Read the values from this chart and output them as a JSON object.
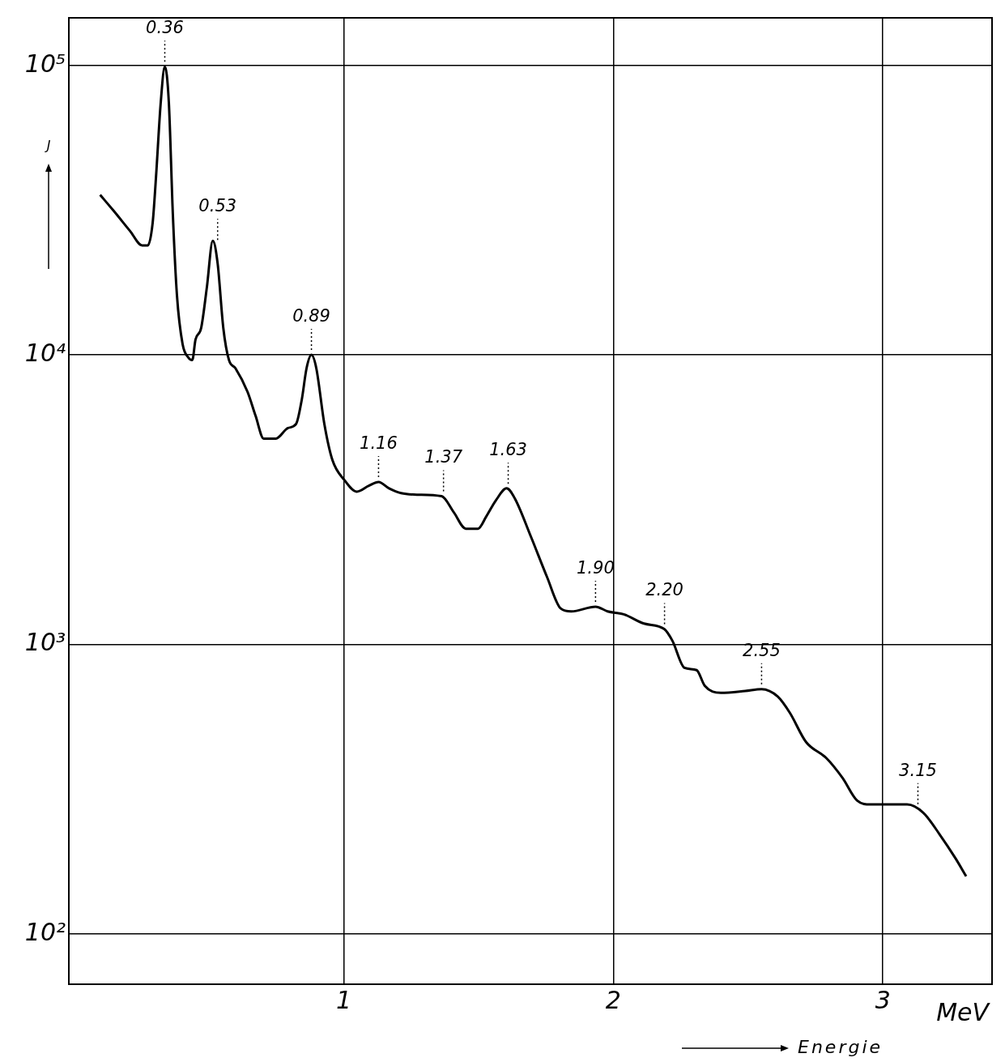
{
  "chart_data": {
    "type": "line",
    "xlabel": "Energie",
    "ylabel": "J",
    "log": "y",
    "grid": true,
    "legend": false,
    "marker": "none",
    "line_style": "solid",
    "xlim": [
      -0.02,
      3.405
    ],
    "xticks": [
      1,
      2,
      3
    ],
    "ylim": [
      67,
      146000
    ],
    "yticks": [
      {
        "value": 100,
        "label": "10²"
      },
      {
        "value": 1000,
        "label": "10³"
      },
      {
        "value": 10000,
        "label": "10⁴"
      },
      {
        "value": 100000,
        "label": "10⁵"
      }
    ],
    "series": [
      {
        "color": "#000000",
        "x": [
          0.096,
          0.147,
          0.207,
          0.252,
          0.273,
          0.291,
          0.303,
          0.321,
          0.336,
          0.351,
          0.366,
          0.381,
          0.402,
          0.423,
          0.438,
          0.45,
          0.471,
          0.492,
          0.514,
          0.532,
          0.553,
          0.574,
          0.598,
          0.643,
          0.673,
          0.703,
          0.748,
          0.793,
          0.823,
          0.844,
          0.862,
          0.88,
          0.898,
          0.928,
          0.958,
          1.003,
          1.048,
          1.093,
          1.129,
          1.168,
          1.213,
          1.273,
          1.363,
          1.408,
          1.453,
          1.498,
          1.529,
          1.565,
          1.604,
          1.634,
          1.694,
          1.754,
          1.805,
          1.844,
          1.934,
          1.979,
          2.039,
          2.114,
          2.189,
          2.219,
          2.264,
          2.309,
          2.339,
          2.399,
          2.489,
          2.55,
          2.61,
          2.655,
          2.715,
          2.79,
          2.85,
          2.904,
          2.955,
          3.03,
          3.09,
          3.15,
          3.21,
          3.27,
          3.309
        ],
        "values": [
          35700,
          31400,
          26800,
          23900,
          23900,
          28600,
          40600,
          74500,
          99000,
          74500,
          30400,
          16100,
          10900,
          9800,
          9600,
          11300,
          12400,
          17100,
          24800,
          20700,
          12400,
          9600,
          9000,
          7450,
          6150,
          5140,
          5140,
          5590,
          5770,
          6990,
          9000,
          10000,
          9000,
          5770,
          4330,
          3690,
          3370,
          3530,
          3640,
          3460,
          3330,
          3290,
          3250,
          2860,
          2510,
          2510,
          2770,
          3150,
          3460,
          3200,
          2360,
          1710,
          1330,
          1300,
          1350,
          1300,
          1270,
          1180,
          1130,
          1030,
          830,
          815,
          720,
          680,
          690,
          700,
          660,
          580,
          460,
          405,
          346,
          289,
          280,
          280,
          280,
          262,
          221,
          182,
          158
        ]
      }
    ],
    "annotations": [
      "MeV",
      {
        "text": "0.36",
        "x": 0.336,
        "y": 99000
      },
      {
        "text": "0.53",
        "x": 0.532,
        "y": 24000
      },
      {
        "text": "0.89",
        "x": 0.88,
        "y": 10000
      },
      {
        "text": "1.16",
        "x": 1.129,
        "y": 3640
      },
      {
        "text": "1.37",
        "x": 1.37,
        "y": 3250
      },
      {
        "text": "1.63",
        "x": 1.61,
        "y": 3450
      },
      {
        "text": "1.90",
        "x": 1.934,
        "y": 1350
      },
      {
        "text": "2.20",
        "x": 2.19,
        "y": 1130
      },
      {
        "text": "2.55",
        "x": 2.55,
        "y": 700
      },
      {
        "text": "3.15",
        "x": 3.13,
        "y": 270
      }
    ]
  }
}
